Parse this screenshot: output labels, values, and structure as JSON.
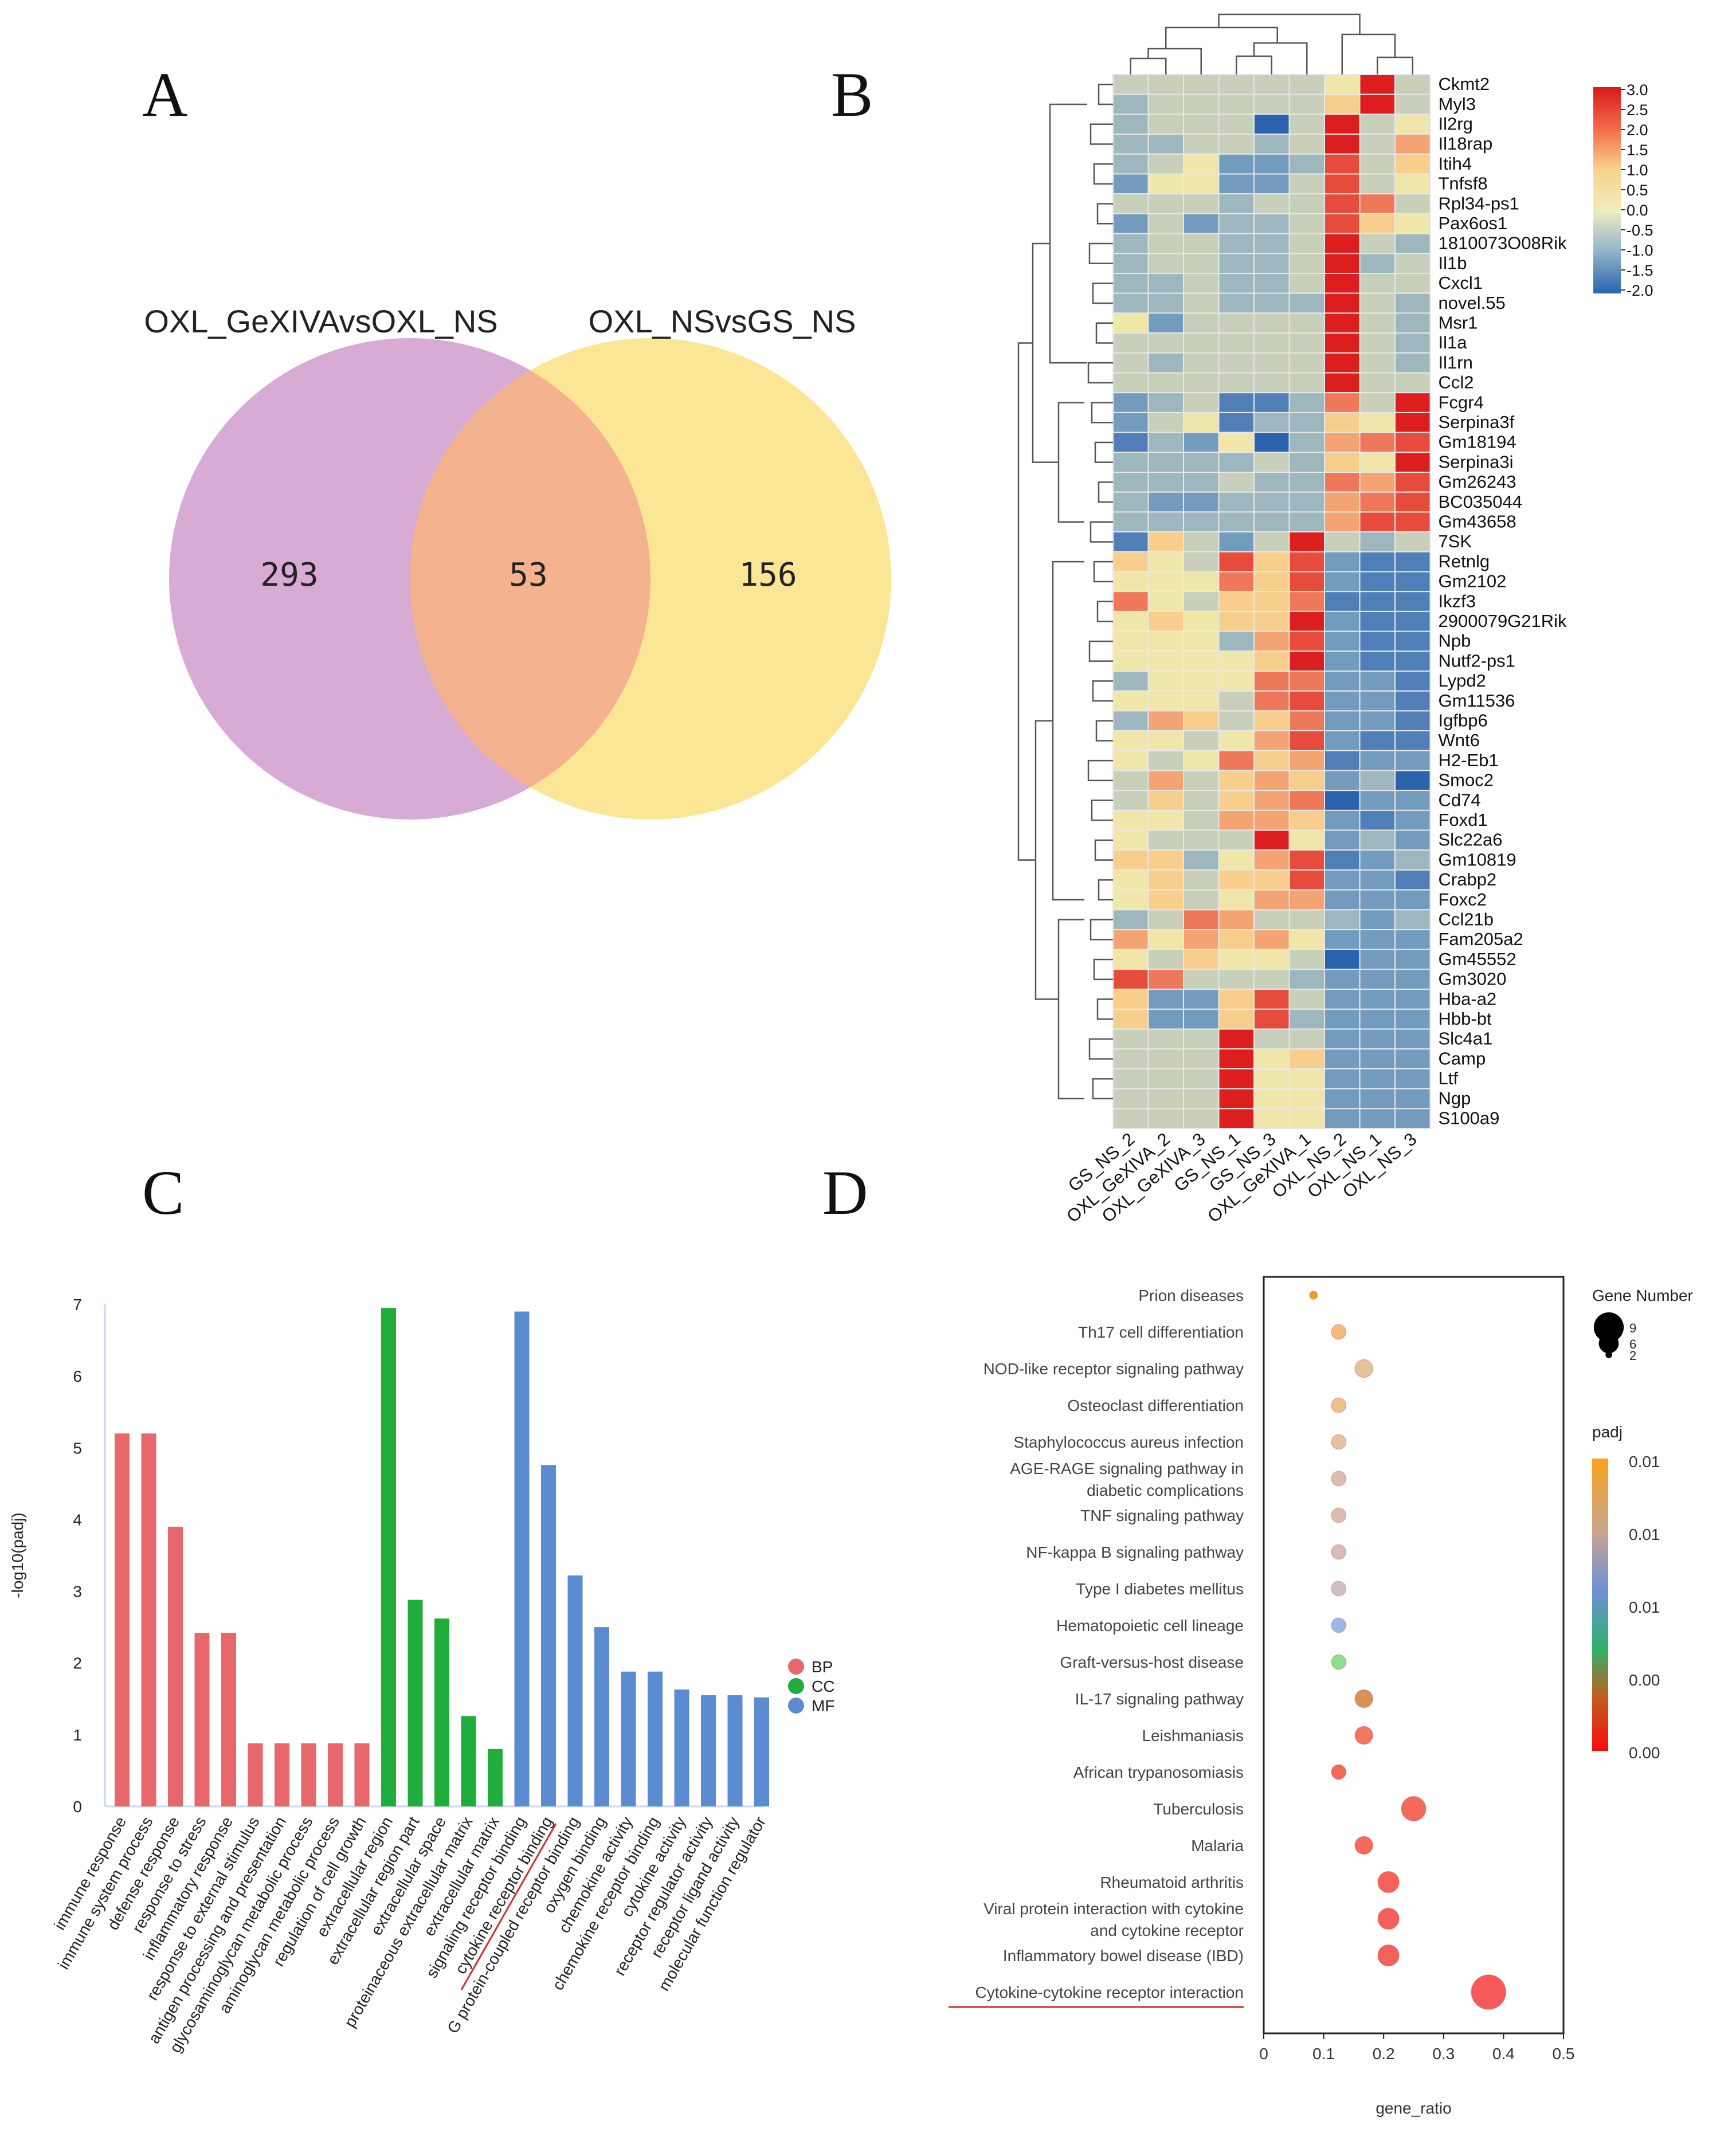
{
  "panels": {
    "a": "A",
    "b": "B",
    "c": "C",
    "d": "D"
  },
  "chart_data": [
    {
      "type": "venn",
      "id": "A",
      "sets": [
        {
          "name": "OXL_GeXIVAvsOXL_NS",
          "only": 293,
          "color": "#c98fc6"
        },
        {
          "name": "OXL_NSvsGS_NS",
          "only": 156,
          "color": "#fbe38a"
        }
      ],
      "overlap": 53,
      "overlap_color": "#f5b28e"
    },
    {
      "type": "heatmap",
      "id": "B",
      "columns": [
        "GS_NS_2",
        "OXL_GeXIVA_2",
        "OXL_GeXIVA_3",
        "GS_NS_1",
        "GS_NS_3",
        "OXL_GeXIVA_1",
        "OXL_NS_2",
        "OXL_NS_1",
        "OXL_NS_3"
      ],
      "rows": [
        "Ckmt2",
        "Myl3",
        "Il2rg",
        "Il18rap",
        "Itih4",
        "Tnfsf8",
        "Rpl34-ps1",
        "Pax6os1",
        "1810073O08Rik",
        "Il1b",
        "Cxcl1",
        "novel.55",
        "Msr1",
        "Il1a",
        "Il1rn",
        "Ccl2",
        "Fcgr4",
        "Serpina3f",
        "Gm18194",
        "Serpina3i",
        "Gm26243",
        "BC035044",
        "Gm43658",
        "7SK",
        "Retnlg",
        "Gm2102",
        "Ikzf3",
        "2900079G21Rik",
        "Npb",
        "Nutf2-ps1",
        "Lypd2",
        "Gm11536",
        "Igfbp6",
        "Wnt6",
        "H2-Eb1",
        "Smoc2",
        "Cd74",
        "Foxd1",
        "Slc22a6",
        "Gm10819",
        "Crabp2",
        "Foxc2",
        "Ccl21b",
        "Fam205a2",
        "Gm45552",
        "Gm3020",
        "Hba-a2",
        "Hbb-bt",
        "Slc4a1",
        "Camp",
        "Ltf",
        "Ngp",
        "S100a9"
      ],
      "values": [
        [
          0,
          0,
          0,
          0,
          0,
          0,
          0.5,
          3,
          0
        ],
        [
          -0.5,
          0,
          0,
          0,
          0,
          0,
          1,
          3,
          0
        ],
        [
          -0.5,
          0,
          0,
          0,
          -2,
          0,
          3,
          0,
          0.5
        ],
        [
          -0.5,
          -0.5,
          0,
          0,
          -0.5,
          0,
          3,
          0,
          1.5
        ],
        [
          -0.5,
          0,
          0.5,
          -1,
          -1,
          -0.5,
          2.5,
          0,
          1
        ],
        [
          -1,
          0.5,
          0.5,
          -1,
          -1,
          0,
          2.5,
          0,
          0.5
        ],
        [
          0,
          0,
          0,
          -0.5,
          0,
          0,
          2.5,
          2,
          0
        ],
        [
          -1,
          0,
          -1,
          -0.5,
          -0.5,
          0,
          2.5,
          1,
          0.5
        ],
        [
          -0.5,
          0,
          0,
          -0.5,
          -0.5,
          0,
          3,
          0,
          -0.5
        ],
        [
          -0.5,
          0,
          0,
          -0.5,
          -0.5,
          0,
          3,
          -0.5,
          0
        ],
        [
          -0.5,
          -0.5,
          0,
          -0.5,
          -0.5,
          0,
          3,
          0,
          0
        ],
        [
          -0.5,
          -0.5,
          0,
          -0.5,
          -0.5,
          -0.5,
          3,
          0,
          -0.5
        ],
        [
          0.5,
          -1,
          0,
          0,
          0,
          0,
          3,
          0,
          -0.5
        ],
        [
          0,
          0,
          0,
          0,
          0,
          0,
          3,
          0,
          -0.5
        ],
        [
          0,
          -0.5,
          0,
          0,
          0,
          0,
          3,
          0,
          -0.5
        ],
        [
          0,
          0,
          0,
          0,
          0,
          0,
          3,
          0,
          0
        ],
        [
          -1,
          -0.5,
          0,
          -1.5,
          -1.5,
          -0.5,
          2,
          0,
          3
        ],
        [
          -1,
          0,
          0.5,
          -1.5,
          -0.5,
          -0.5,
          1,
          0.5,
          3
        ],
        [
          -1.5,
          -0.5,
          -1,
          0.5,
          -2,
          -0.5,
          1.5,
          2,
          2.5
        ],
        [
          -0.5,
          -0.5,
          -0.5,
          -0.5,
          0,
          -0.5,
          1,
          0.5,
          3
        ],
        [
          -0.5,
          -0.5,
          -0.5,
          0,
          -0.5,
          -0.5,
          2,
          1.5,
          2.5
        ],
        [
          -0.5,
          -1,
          -1,
          -0.5,
          -0.5,
          -0.5,
          1.5,
          2,
          2.5
        ],
        [
          -0.5,
          -0.5,
          -0.5,
          -0.5,
          -0.5,
          -0.5,
          1.5,
          2.5,
          2.5
        ],
        [
          -1.5,
          1,
          0,
          -1,
          0,
          3,
          0,
          -0.5,
          0
        ],
        [
          1,
          0.5,
          0,
          2.5,
          1,
          2.5,
          -1,
          -1.5,
          -1.5
        ],
        [
          0.5,
          0.5,
          0.5,
          2,
          1,
          2.5,
          -1,
          -1.5,
          -1.5
        ],
        [
          2,
          0.5,
          0,
          1,
          1,
          2,
          -1.5,
          -1.5,
          -1.5
        ],
        [
          0.5,
          1,
          0.5,
          1,
          1,
          3,
          -1,
          -1.5,
          -1.5
        ],
        [
          0.5,
          0.5,
          0.5,
          -0.5,
          1.5,
          2.5,
          -1,
          -1.5,
          -1.5
        ],
        [
          0.5,
          0.5,
          0.5,
          0.5,
          1,
          3,
          -1,
          -1.5,
          -1.5
        ],
        [
          -0.5,
          0.5,
          0.5,
          0.5,
          2,
          2,
          -1,
          -1,
          -1.5
        ],
        [
          0.5,
          0.5,
          0.5,
          0,
          2,
          2.5,
          -1,
          -1,
          -1.5
        ],
        [
          -0.5,
          1.5,
          1,
          0,
          1,
          2,
          -1,
          -1,
          -1.5
        ],
        [
          0.5,
          0.5,
          0,
          0.5,
          1.5,
          2.5,
          -1,
          -1.5,
          -1.5
        ],
        [
          0.5,
          0,
          0.5,
          2,
          1,
          1.5,
          -1.5,
          -1,
          -1
        ],
        [
          0,
          1.5,
          0,
          1,
          1.5,
          1,
          -1,
          -0.5,
          -2
        ],
        [
          0,
          1,
          0,
          1,
          1.5,
          2,
          -2,
          -1,
          -1
        ],
        [
          0.5,
          0.5,
          0,
          1.5,
          1.5,
          1,
          -1,
          -1.5,
          -1
        ],
        [
          0.5,
          0,
          0,
          0,
          3,
          0.5,
          -1,
          -0.5,
          -1
        ],
        [
          1,
          1,
          -0.5,
          0.5,
          1.5,
          2.5,
          -1.5,
          -1,
          -0.5
        ],
        [
          0.5,
          1,
          0,
          1,
          1,
          2.5,
          -1,
          -1,
          -1.5
        ],
        [
          0.5,
          1,
          0,
          0.5,
          1.5,
          1.5,
          -1,
          -1,
          -1
        ],
        [
          -0.5,
          0,
          2,
          1.5,
          0,
          0,
          -0.5,
          -1,
          -0.5
        ],
        [
          1.5,
          0.5,
          1.5,
          1,
          1.5,
          0.5,
          -1,
          -1,
          -1
        ],
        [
          0.5,
          0,
          1,
          0.5,
          0.5,
          0,
          -2,
          -1,
          -1
        ],
        [
          2.5,
          2,
          0,
          0,
          0,
          -0.5,
          -1,
          -1,
          -1
        ],
        [
          1,
          -1,
          -1,
          1,
          2.5,
          0,
          -1,
          -1,
          -1
        ],
        [
          1,
          -1,
          -1,
          1,
          2.5,
          -0.5,
          -1,
          -1,
          -1
        ],
        [
          0,
          0,
          0,
          3,
          0,
          0,
          -1,
          -1,
          -1
        ],
        [
          0,
          0,
          0,
          3,
          0.5,
          1,
          -1,
          -1,
          -1
        ],
        [
          0,
          0,
          0,
          3,
          0.5,
          0.5,
          -1,
          -1,
          -1
        ],
        [
          0,
          0,
          0,
          3,
          0.5,
          0.5,
          -1,
          -1,
          -1
        ],
        [
          0,
          0,
          0,
          3,
          0.5,
          0.5,
          -1,
          -1,
          -1
        ]
      ],
      "colorbar": {
        "ticks": [
          "3.0",
          "2.5",
          "2.0",
          "1.5",
          "1.0",
          "0.5",
          "0.0",
          "-0.5",
          "-1.0",
          "-1.5",
          "-2.0"
        ],
        "range": [
          -2,
          3
        ]
      }
    },
    {
      "type": "bar",
      "id": "C",
      "ylabel": "-log10(padj)",
      "ylim": [
        0,
        7
      ],
      "yticks": [
        "0",
        "1",
        "2",
        "3",
        "4",
        "5",
        "6",
        "7"
      ],
      "legend": [
        {
          "name": "BP",
          "color": "#e8676b"
        },
        {
          "name": "CC",
          "color": "#1fad3b"
        },
        {
          "name": "MF",
          "color": "#5b8bd0"
        }
      ],
      "categories": [
        "immune response",
        "immune system process",
        "defense response",
        "response to stress",
        "inflammatory response",
        "response to external stimulus",
        "antigen processing and presentation",
        "glycosaminoglycan metabolic process",
        "aminoglycan metabolic process",
        "regulation of cell growth",
        "extracellular region",
        "extracellular region part",
        "extracellular space",
        "proteinaceous extracellular matrix",
        "extracellular matrix",
        "signaling receptor binding",
        "cytokine receptor binding",
        "G protein-coupled receptor binding",
        "oxygen binding",
        "chemokine activity",
        "chemokine receptor binding",
        "cytokine activity",
        "receptor regulator activity",
        "receptor ligand activity",
        "molecular function regulator"
      ],
      "groups": [
        "BP",
        "BP",
        "BP",
        "BP",
        "BP",
        "BP",
        "BP",
        "BP",
        "BP",
        "BP",
        "CC",
        "CC",
        "CC",
        "CC",
        "CC",
        "MF",
        "MF",
        "MF",
        "MF",
        "MF",
        "MF",
        "MF",
        "MF",
        "MF",
        "MF"
      ],
      "values": [
        5.2,
        5.2,
        3.9,
        2.42,
        2.42,
        0.88,
        0.88,
        0.88,
        0.88,
        0.88,
        6.95,
        2.88,
        2.62,
        1.26,
        0.8,
        6.9,
        4.76,
        3.22,
        2.5,
        1.88,
        1.88,
        1.63,
        1.55,
        1.55,
        1.52
      ]
    },
    {
      "type": "scatter",
      "id": "D",
      "xlabel": "gene_ratio",
      "xlim": [
        0,
        0.5
      ],
      "xticks": [
        "0",
        "0.1",
        "0.2",
        "0.3",
        "0.4",
        "0.5"
      ],
      "size_legend_title": "Gene Number",
      "size_legend": [
        9,
        6,
        2
      ],
      "color_legend_title": "padj",
      "color_legend_ticks": [
        "0.01",
        "0.01",
        "0.01",
        "0.00",
        "0.00"
      ],
      "pathways": [
        {
          "name": "Prion diseases",
          "gene_ratio": 0.083,
          "gene_number": 1,
          "color": "#f39c1c"
        },
        {
          "name": "Th17 cell differentiation",
          "gene_ratio": 0.125,
          "gene_number": 3,
          "color": "#f3ba78"
        },
        {
          "name": "NOD-like receptor signaling pathway",
          "gene_ratio": 0.167,
          "gene_number": 4,
          "color": "#e6c29a"
        },
        {
          "name": "Osteoclast differentiation",
          "gene_ratio": 0.125,
          "gene_number": 3,
          "color": "#f0c08c"
        },
        {
          "name": "Staphylococcus aureus infection",
          "gene_ratio": 0.125,
          "gene_number": 3,
          "color": "#e8c0a2"
        },
        {
          "name": "AGE-RAGE signaling pathway in diabetic complications",
          "gene_ratio": 0.125,
          "gene_number": 3,
          "color": "#d8bfb0"
        },
        {
          "name": "TNF signaling pathway",
          "gene_ratio": 0.125,
          "gene_number": 3,
          "color": "#d8bfb0"
        },
        {
          "name": "NF-kappa B signaling pathway",
          "gene_ratio": 0.125,
          "gene_number": 3,
          "color": "#d6beb6"
        },
        {
          "name": "Type I diabetes mellitus",
          "gene_ratio": 0.125,
          "gene_number": 3,
          "color": "#cfc0c8"
        },
        {
          "name": "Hematopoietic cell lineage",
          "gene_ratio": 0.125,
          "gene_number": 3,
          "color": "#9bb9e8"
        },
        {
          "name": "Graft-versus-host disease",
          "gene_ratio": 0.125,
          "gene_number": 3,
          "color": "#8ee08e"
        },
        {
          "name": "IL-17 signaling pathway",
          "gene_ratio": 0.167,
          "gene_number": 4,
          "color": "#d9915a"
        },
        {
          "name": "Leishmaniasis",
          "gene_ratio": 0.167,
          "gene_number": 4,
          "color": "#f27760"
        },
        {
          "name": "African trypanosomiasis",
          "gene_ratio": 0.125,
          "gene_number": 3,
          "color": "#f46a55"
        },
        {
          "name": "Tuberculosis",
          "gene_ratio": 0.25,
          "gene_number": 6,
          "color": "#f26a5a"
        },
        {
          "name": "Malaria",
          "gene_ratio": 0.167,
          "gene_number": 4,
          "color": "#f56a5c"
        },
        {
          "name": "Rheumatoid arthritis",
          "gene_ratio": 0.208,
          "gene_number": 5,
          "color": "#f5625a"
        },
        {
          "name": "Viral protein interaction with cytokine and cytokine receptor",
          "gene_ratio": 0.208,
          "gene_number": 5,
          "color": "#f5605a"
        },
        {
          "name": "Inflammatory bowel disease (IBD)",
          "gene_ratio": 0.208,
          "gene_number": 5,
          "color": "#f5605a"
        },
        {
          "name": "Cytokine-cytokine receptor interaction",
          "gene_ratio": 0.375,
          "gene_number": 9,
          "color": "#f55a58"
        }
      ]
    }
  ]
}
